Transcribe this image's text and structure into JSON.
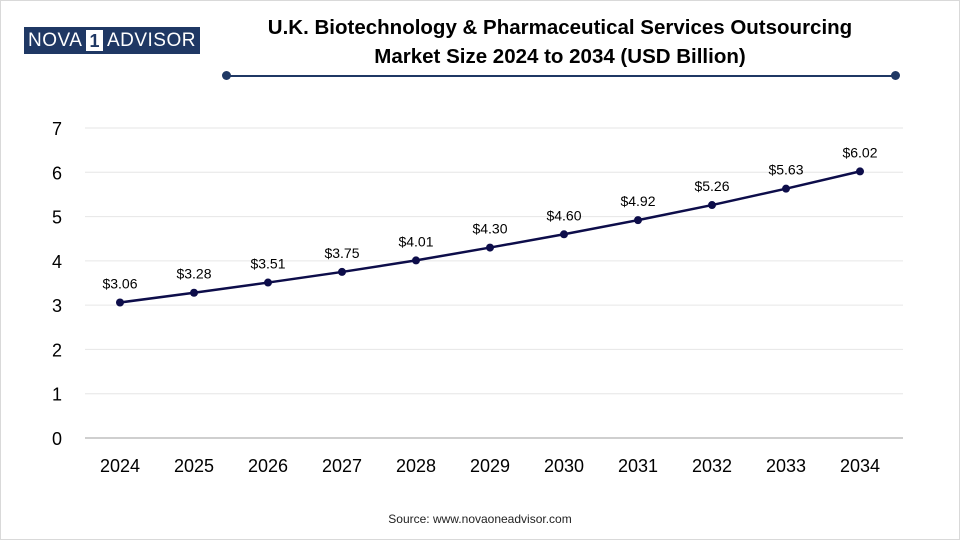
{
  "brand": {
    "logo_left": "NOVA",
    "logo_mid": "1",
    "logo_right": "ADVISOR"
  },
  "title_line1": "U.K. Biotechnology & Pharmaceutical Services Outsourcing",
  "title_line2": "Market Size 2024 to 2034 (USD Billion)",
  "source": "Source: www.novaoneadvisor.com",
  "colors": {
    "line": "#0d0d4a",
    "accent": "#1f3864",
    "grid": "#e6e6e6",
    "axis": "#bfbfbf"
  },
  "chart_data": {
    "type": "line",
    "categories": [
      "2024",
      "2025",
      "2026",
      "2027",
      "2028",
      "2029",
      "2030",
      "2031",
      "2032",
      "2033",
      "2034"
    ],
    "values": [
      3.06,
      3.28,
      3.51,
      3.75,
      4.01,
      4.3,
      4.6,
      4.92,
      5.26,
      5.63,
      6.02
    ],
    "data_labels": [
      "$3.06",
      "$3.28",
      "$3.51",
      "$3.75",
      "$4.01",
      "$4.30",
      "$4.60",
      "$4.92",
      "$5.26",
      "$5.63",
      "$6.02"
    ],
    "y_ticks": [
      "0",
      "1",
      "2",
      "3",
      "4",
      "5",
      "6",
      "7"
    ],
    "ylim": [
      0,
      7
    ],
    "grid": true,
    "legend": "none"
  }
}
